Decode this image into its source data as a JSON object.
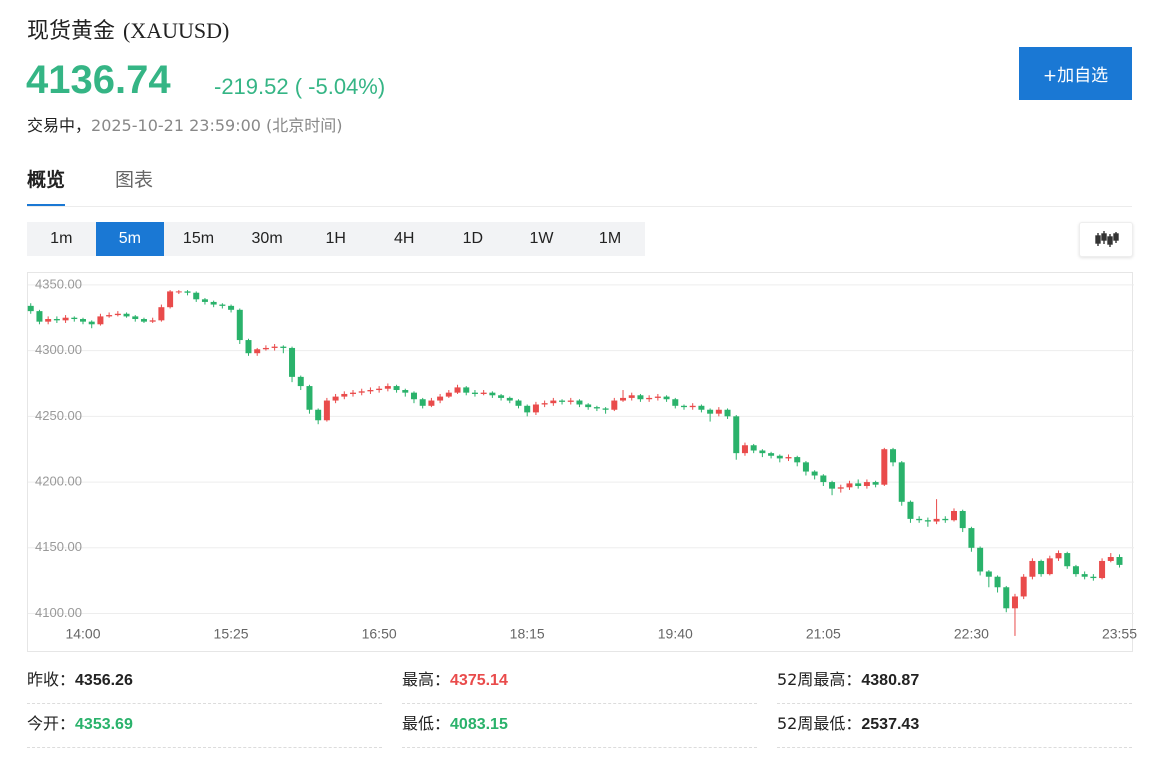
{
  "header": {
    "title": "现货黄金",
    "symbol": "(XAUUSD)",
    "price": "4136.74",
    "change": "-219.52 ( -5.04%)",
    "status": "交易中，",
    "timestamp": "2025-10-21 23:59:00",
    "timezone": "(北京时间)",
    "watch_button": "+加自选"
  },
  "tabs": [
    "概览",
    "图表"
  ],
  "active_tab": 0,
  "intervals": [
    "1m",
    "5m",
    "15m",
    "30m",
    "1H",
    "4H",
    "1D",
    "1W",
    "1M"
  ],
  "active_interval": 1,
  "chart_data": {
    "type": "candlestick",
    "up_color": "#e94b4b",
    "down_color": "#2ab26b",
    "grid": true,
    "ylim": [
      4070,
      4359
    ],
    "yticks": [
      {
        "value": 4100,
        "label": "4100.00"
      },
      {
        "value": 4150,
        "label": "4150.00"
      },
      {
        "value": 4200,
        "label": "4200.00"
      },
      {
        "value": 4250,
        "label": "4250.00"
      },
      {
        "value": 4300,
        "label": "4300.00"
      },
      {
        "value": 4350,
        "label": "4350.00"
      }
    ],
    "categories": [
      null,
      null,
      null,
      null,
      null,
      null,
      "14:00",
      null,
      null,
      null,
      null,
      null,
      null,
      null,
      null,
      null,
      null,
      null,
      null,
      null,
      null,
      null,
      null,
      "15:25",
      null,
      null,
      null,
      null,
      null,
      null,
      null,
      null,
      null,
      null,
      null,
      null,
      null,
      null,
      null,
      null,
      "16:50",
      null,
      null,
      null,
      null,
      null,
      null,
      null,
      null,
      null,
      null,
      null,
      null,
      null,
      null,
      null,
      null,
      "18:15",
      null,
      null,
      null,
      null,
      null,
      null,
      null,
      null,
      null,
      null,
      null,
      null,
      null,
      null,
      null,
      null,
      "19:40",
      null,
      null,
      null,
      null,
      null,
      null,
      null,
      null,
      null,
      null,
      null,
      null,
      null,
      null,
      null,
      null,
      "21:05",
      null,
      null,
      null,
      null,
      null,
      null,
      null,
      null,
      null,
      null,
      null,
      null,
      null,
      null,
      null,
      null,
      "22:30",
      null,
      null,
      null,
      null,
      null,
      null,
      null,
      null,
      null,
      null,
      null,
      null,
      null,
      null,
      null,
      null,
      "23:55"
    ],
    "open": [
      4334,
      4330,
      4322,
      4324,
      4323,
      4325,
      4324,
      4322,
      4320,
      4326,
      4327,
      4328,
      4326,
      4324,
      4322,
      4323,
      4333,
      4345,
      4345,
      4344,
      4339,
      4337,
      4335,
      4334,
      4331,
      4308,
      4298,
      4301,
      4302,
      4303,
      4302,
      4280,
      4273,
      4255,
      4247,
      4262,
      4265,
      4267,
      4268,
      4269,
      4270,
      4271,
      4273,
      4270,
      4268,
      4263,
      4258,
      4262,
      4265,
      4268,
      4272,
      4268,
      4267,
      4268,
      4266,
      4264,
      4262,
      4258,
      4253,
      4259,
      4260,
      4262,
      4261,
      4262,
      4259,
      4257,
      4256,
      4255,
      4262,
      4264,
      4266,
      4263,
      4264,
      4265,
      4263,
      4258,
      4257,
      4258,
      4255,
      4252,
      4255,
      4250,
      4222,
      4228,
      4224,
      4222,
      4220,
      4218,
      4219,
      4215,
      4208,
      4205,
      4200,
      4195,
      4196,
      4199,
      4197,
      4200,
      4198,
      4225,
      4215,
      4185,
      4172,
      4171,
      4170,
      4172,
      4171,
      4178,
      4165,
      4150,
      4132,
      4128,
      4120,
      4104,
      4113,
      4128,
      4140,
      4130,
      4142,
      4146,
      4136,
      4130,
      4128,
      4127,
      4140,
      4143
    ],
    "high": [
      4336,
      4331,
      4326,
      4326,
      4327,
      4326,
      4325,
      4323,
      4328,
      4329,
      4330,
      4329,
      4327,
      4325,
      4325,
      4335,
      4346,
      4346,
      4346,
      4345,
      4340,
      4338,
      4336,
      4335,
      4332,
      4309,
      4302,
      4304,
      4305,
      4304,
      4303,
      4281,
      4274,
      4256,
      4264,
      4267,
      4269,
      4270,
      4271,
      4272,
      4273,
      4275,
      4274,
      4271,
      4269,
      4264,
      4264,
      4267,
      4270,
      4274,
      4273,
      4270,
      4270,
      4269,
      4267,
      4265,
      4263,
      4259,
      4261,
      4262,
      4264,
      4263,
      4264,
      4263,
      4260,
      4258,
      4257,
      4264,
      4270,
      4268,
      4267,
      4266,
      4267,
      4266,
      4264,
      4259,
      4260,
      4259,
      4256,
      4257,
      4256,
      4251,
      4230,
      4229,
      4225,
      4223,
      4221,
      4221,
      4220,
      4216,
      4209,
      4206,
      4201,
      4198,
      4201,
      4202,
      4202,
      4201,
      4226,
      4226,
      4216,
      4186,
      4174,
      4173,
      4187,
      4174,
      4180,
      4179,
      4166,
      4151,
      4133,
      4129,
      4121,
      4115,
      4130,
      4142,
      4141,
      4144,
      4148,
      4147,
      4137,
      4132,
      4130,
      4142,
      4146,
      4145
    ],
    "low": [
      4328,
      4320,
      4320,
      4321,
      4321,
      4322,
      4320,
      4317,
      4319,
      4325,
      4326,
      4325,
      4322,
      4321,
      4321,
      4322,
      4332,
      4343,
      4342,
      4337,
      4335,
      4333,
      4332,
      4329,
      4305,
      4296,
      4296,
      4300,
      4300,
      4298,
      4276,
      4270,
      4252,
      4244,
      4246,
      4260,
      4263,
      4265,
      4266,
      4267,
      4268,
      4269,
      4268,
      4265,
      4260,
      4256,
      4257,
      4260,
      4264,
      4267,
      4266,
      4265,
      4266,
      4264,
      4262,
      4260,
      4256,
      4250,
      4251,
      4257,
      4258,
      4259,
      4259,
      4257,
      4255,
      4254,
      4252,
      4254,
      4261,
      4262,
      4261,
      4261,
      4262,
      4261,
      4256,
      4255,
      4255,
      4253,
      4246,
      4250,
      4248,
      4217,
      4220,
      4222,
      4219,
      4218,
      4215,
      4216,
      4212,
      4205,
      4202,
      4197,
      4190,
      4192,
      4194,
      4195,
      4195,
      4196,
      4197,
      4212,
      4182,
      4169,
      4169,
      4166,
      4168,
      4169,
      4170,
      4162,
      4147,
      4129,
      4120,
      4116,
      4101,
      4083,
      4111,
      4126,
      4128,
      4129,
      4140,
      4134,
      4128,
      4126,
      4125,
      4126,
      4139,
      4135
    ],
    "close": [
      4330,
      4322,
      4324,
      4323,
      4325,
      4324,
      4322,
      4320,
      4326,
      4327,
      4328,
      4326,
      4324,
      4322,
      4323,
      4333,
      4345,
      4345,
      4344,
      4339,
      4337,
      4335,
      4334,
      4331,
      4308,
      4298,
      4301,
      4302,
      4303,
      4302,
      4280,
      4273,
      4255,
      4247,
      4262,
      4265,
      4267,
      4268,
      4269,
      4270,
      4271,
      4273,
      4270,
      4268,
      4263,
      4258,
      4262,
      4265,
      4268,
      4272,
      4268,
      4267,
      4268,
      4266,
      4264,
      4262,
      4258,
      4253,
      4259,
      4260,
      4262,
      4261,
      4262,
      4259,
      4257,
      4256,
      4255,
      4262,
      4264,
      4266,
      4263,
      4264,
      4265,
      4263,
      4258,
      4257,
      4258,
      4255,
      4252,
      4255,
      4250,
      4222,
      4228,
      4224,
      4222,
      4220,
      4218,
      4219,
      4215,
      4208,
      4205,
      4200,
      4195,
      4196,
      4199,
      4197,
      4200,
      4198,
      4225,
      4215,
      4185,
      4172,
      4171,
      4170,
      4172,
      4171,
      4178,
      4165,
      4150,
      4132,
      4128,
      4120,
      4104,
      4113,
      4128,
      4140,
      4130,
      4142,
      4146,
      4136,
      4130,
      4128,
      4127,
      4140,
      4143,
      4137
    ]
  },
  "stats": [
    [
      {
        "label": "昨收：",
        "value": "4356.26",
        "color": "#222222"
      },
      {
        "label": "最高：",
        "value": "4375.14",
        "color": "#e94b4b"
      },
      {
        "label": "52周最高：",
        "value": "4380.87",
        "color": "#222222"
      }
    ],
    [
      {
        "label": "今开：",
        "value": "4353.69",
        "color": "#2ab26b"
      },
      {
        "label": "最低：",
        "value": "4083.15",
        "color": "#2ab26b"
      },
      {
        "label": "52周最低：",
        "value": "2537.43",
        "color": "#222222"
      }
    ]
  ]
}
